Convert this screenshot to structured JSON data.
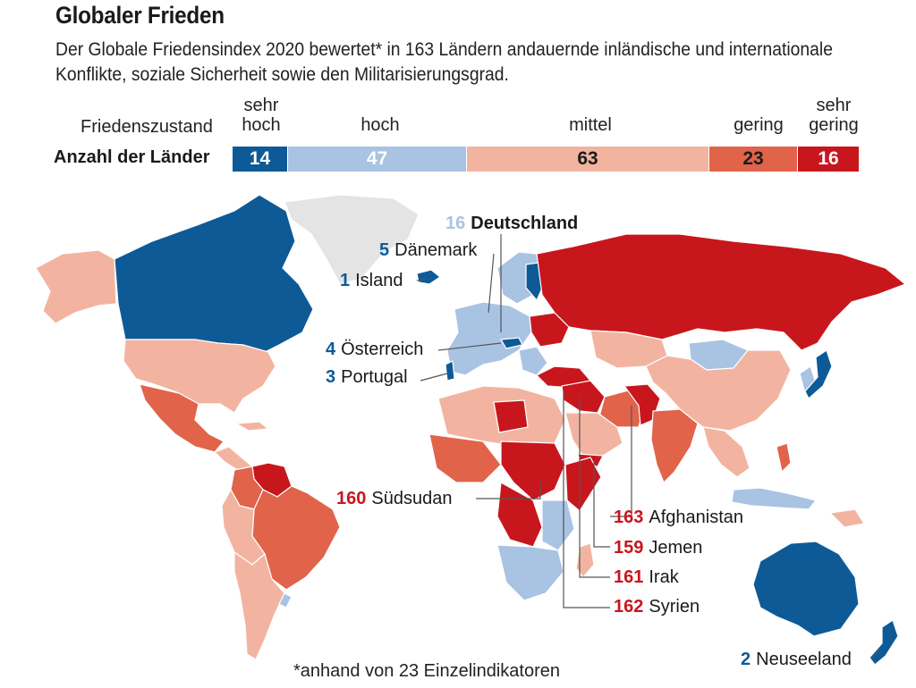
{
  "title": "Globaler Frieden",
  "subtitle": "Der Globale Friedensindex 2020 bewertet* in 163 Ländern andauernde inländische und internationale Konflikte, soziale Sicherheit sowie den Militarisierungsgrad.",
  "legend": {
    "row_label": "Friedenszustand",
    "count_label": "Anzahl der Länder",
    "categories": [
      {
        "name_line1": "sehr",
        "name_line2": "hoch",
        "count": 14,
        "color": "#0e5a97",
        "text_color": "#ffffff"
      },
      {
        "name_line1": "",
        "name_line2": "hoch",
        "count": 47,
        "color": "#a9c3e3",
        "text_color": "#ffffff"
      },
      {
        "name_line1": "",
        "name_line2": "mittel",
        "count": 63,
        "color": "#f2b4a0",
        "text_color": "#1a1a1a"
      },
      {
        "name_line1": "",
        "name_line2": "gering",
        "count": 23,
        "color": "#e0634a",
        "text_color": "#1a1a1a"
      },
      {
        "name_line1": "sehr",
        "name_line2": "gering",
        "count": 16,
        "color": "#c8161d",
        "text_color": "#ffffff"
      }
    ]
  },
  "colors": {
    "sehr_hoch": "#0e5a97",
    "hoch": "#a9c3e3",
    "mittel": "#f2b4a0",
    "gering": "#e0634a",
    "sehr_gering": "#c8161d",
    "no_data": "#e4e4e4"
  },
  "country_labels": [
    {
      "id": "deutschland",
      "rank": "16",
      "name": "Deutschland"
    },
    {
      "id": "daenemark",
      "rank": "5",
      "name": "Dänemark"
    },
    {
      "id": "island",
      "rank": "1",
      "name": "Island"
    },
    {
      "id": "oesterreich",
      "rank": "4",
      "name": "Österreich"
    },
    {
      "id": "portugal",
      "rank": "3",
      "name": "Portugal"
    },
    {
      "id": "suedsudan",
      "rank": "160",
      "name": "Südsudan"
    },
    {
      "id": "afghanistan",
      "rank": "163",
      "name": "Afghanistan"
    },
    {
      "id": "jemen",
      "rank": "159",
      "name": "Jemen"
    },
    {
      "id": "irak",
      "rank": "161",
      "name": "Irak"
    },
    {
      "id": "syrien",
      "rank": "162",
      "name": "Syrien"
    },
    {
      "id": "neuseeland",
      "rank": "2",
      "name": "Neuseeland"
    }
  ],
  "footnote": "*anhand von 23 Einzelindikatoren"
}
